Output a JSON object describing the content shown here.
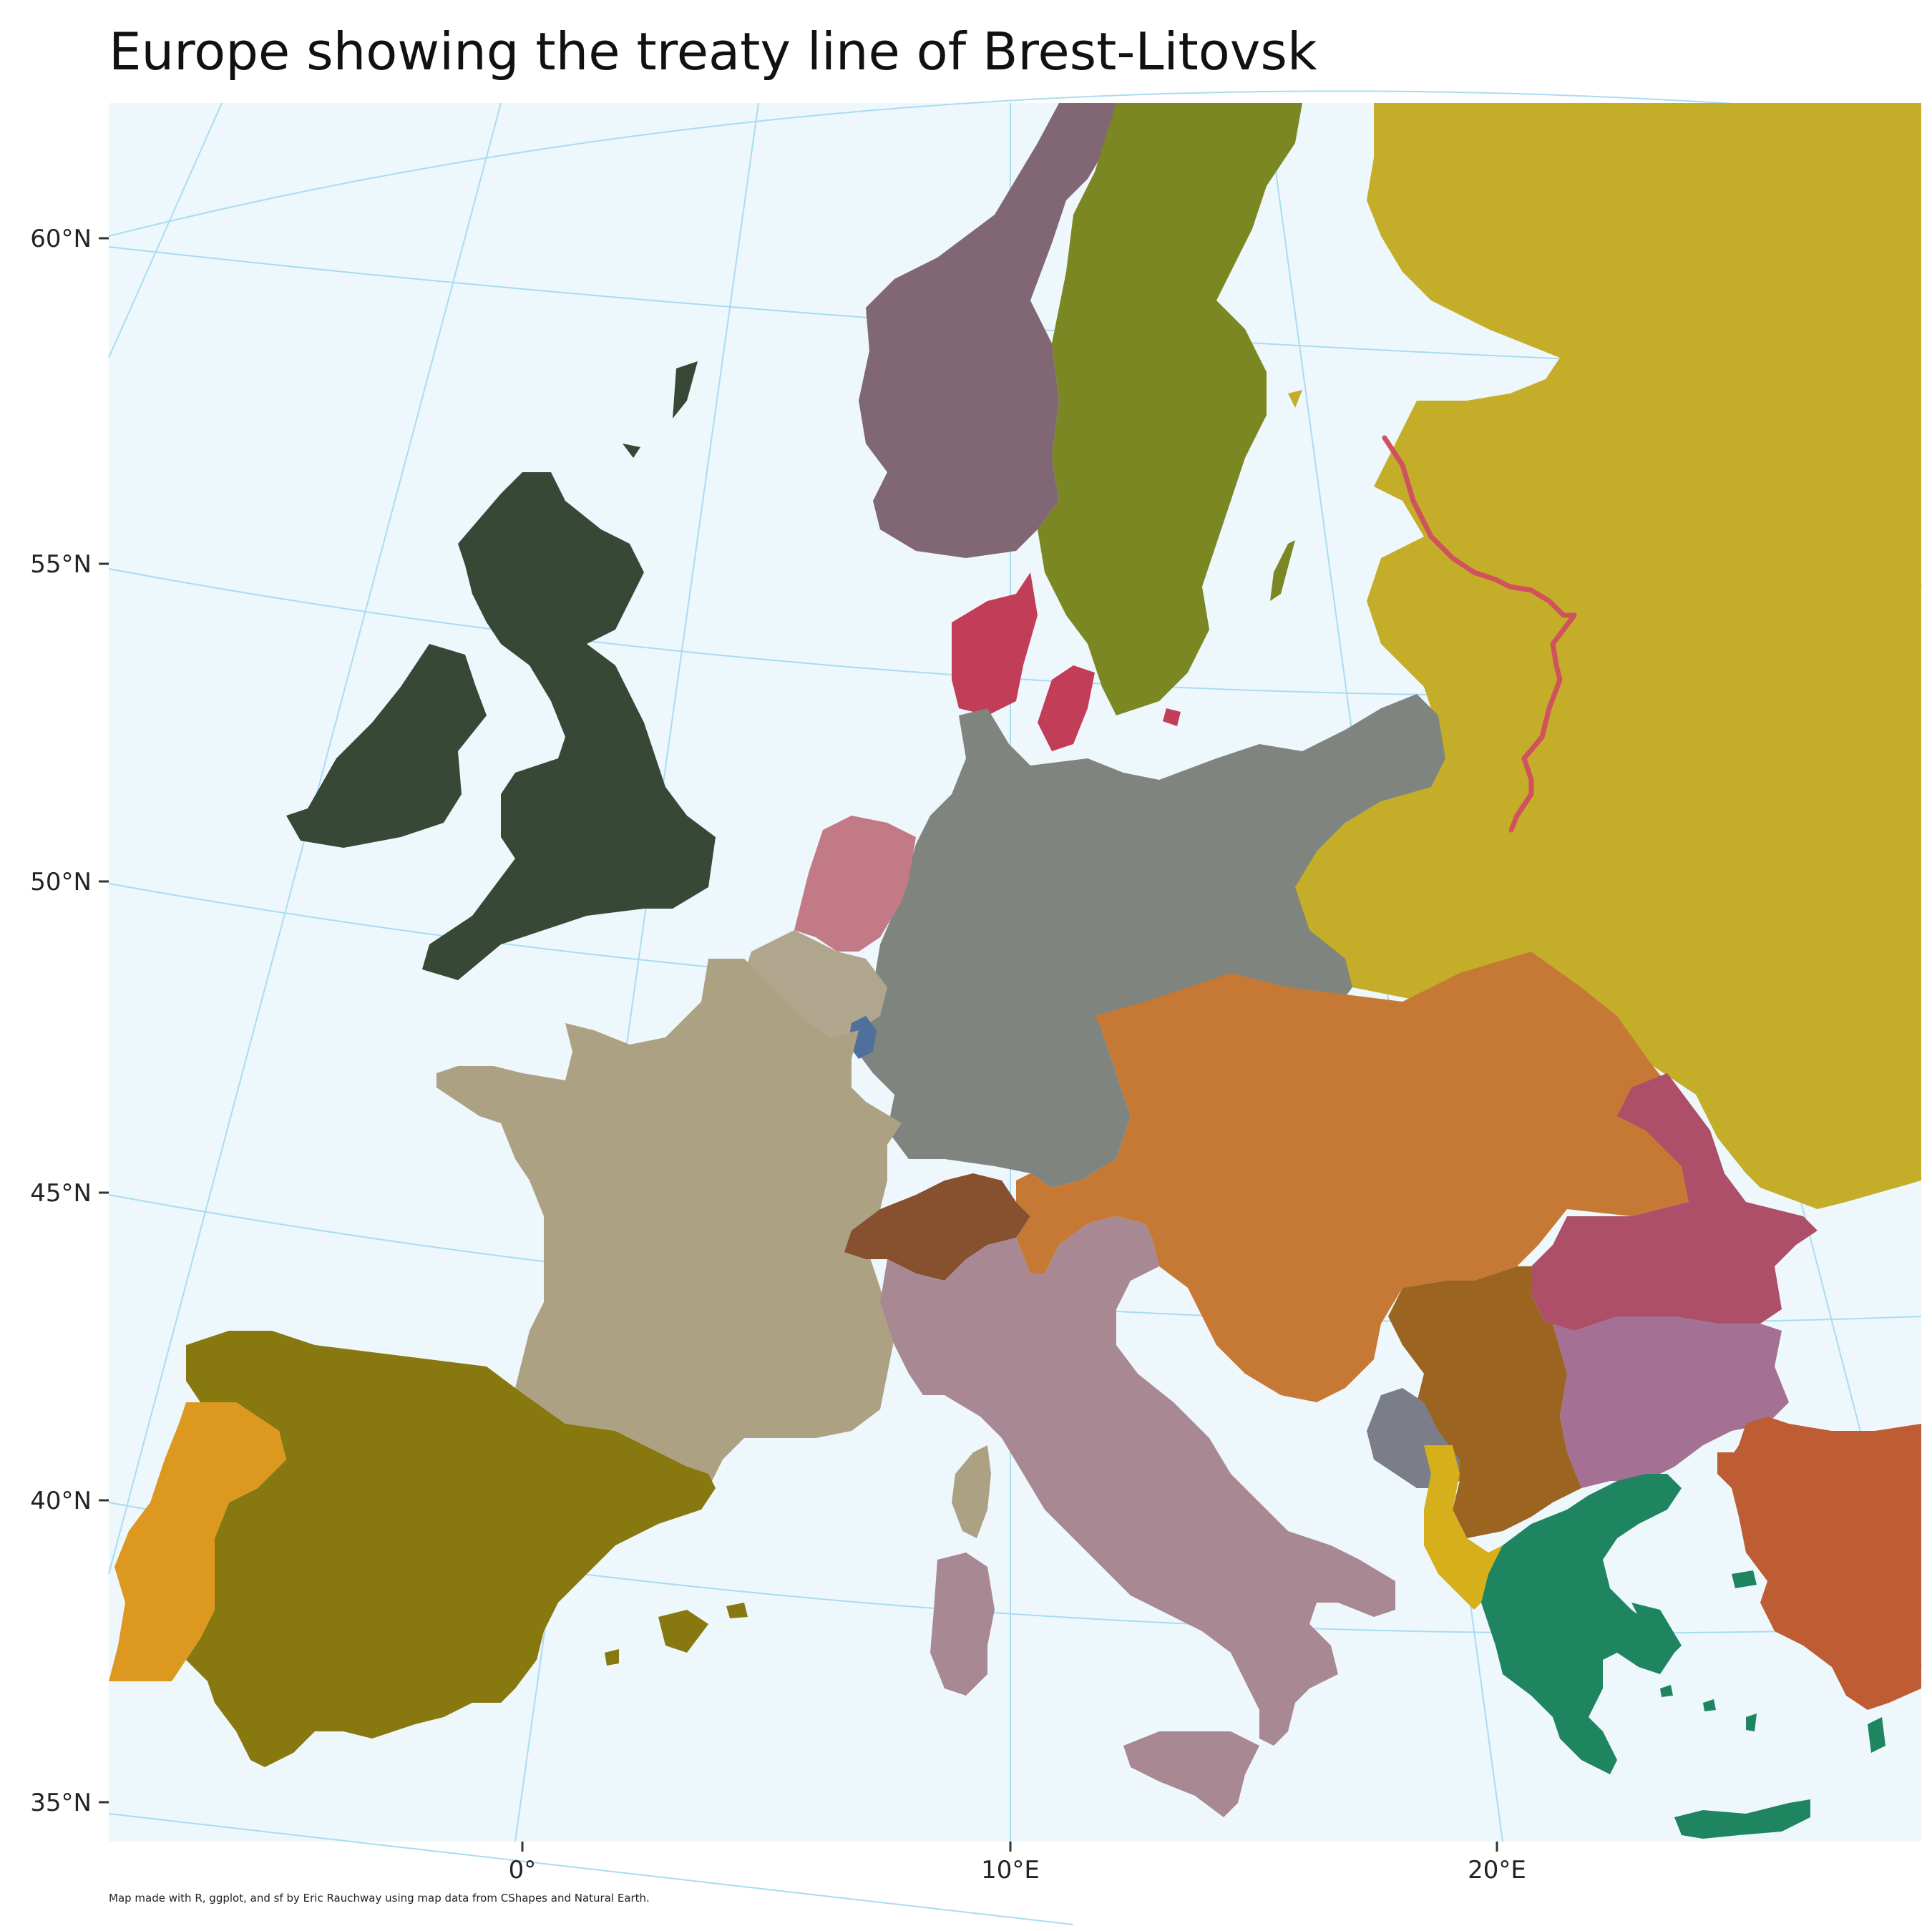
{
  "title": "Europe showing the treaty line of Brest-Litovsk",
  "caption": "Map made with R, ggplot, and sf by Eric Rauchway using map data from CShapes and Natural Earth.",
  "lat_labels": [
    "60°N",
    "55°N",
    "50°N",
    "45°N",
    "40°N",
    "35°N"
  ],
  "lon_labels": [
    "0°",
    "10°E",
    "20°E"
  ],
  "colors": {
    "sea": "#eef7fc",
    "graticule": "#a9dcf2",
    "uk_ireland": "#374836",
    "norway": "#816674",
    "sweden": "#7b8723",
    "russia": "#c4ad29",
    "denmark": "#c23d58",
    "germany": "#7f847f",
    "netherlands": "#c27a86",
    "belgium": "#b0a68e",
    "luxembourg": "#4f6f9d",
    "france": "#aca283",
    "switzerland": "#87512f",
    "austria_hungary": "#c57935",
    "italy": "#a88892",
    "spain": "#887810",
    "portugal": "#dc981f",
    "romania": "#ad4f68",
    "bulgaria": "#a47093",
    "serbia": "#9c6421",
    "montenegro": "#7b7e88",
    "albania": "#d6b01a",
    "greece": "#1e8560",
    "ottoman": "#be5c33",
    "treaty_line": "#d0525e"
  }
}
